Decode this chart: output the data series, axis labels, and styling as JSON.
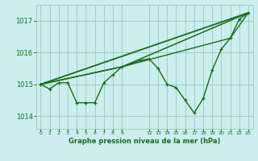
{
  "background_color": "#cceeee",
  "grid_color": "#99ccbb",
  "line_color": "#1a6b1a",
  "marker_color": "#1a6b1a",
  "title": "Graphe pression niveau de la mer (hPa)",
  "ylim": [
    1013.6,
    1017.5
  ],
  "yticks": [
    1014,
    1015,
    1016,
    1017
  ],
  "series": [
    {
      "x": [
        0,
        1,
        2,
        3,
        4,
        5,
        6,
        7,
        8,
        9,
        11,
        12,
        13,
        14,
        15,
        16,
        17,
        18,
        19,
        20,
        21,
        22,
        23
      ],
      "y": [
        1015.0,
        1014.85,
        1015.05,
        1015.05,
        1014.42,
        1014.42,
        1014.42,
        1015.05,
        1015.3,
        1015.55,
        1015.75,
        1015.8,
        1015.5,
        1015.0,
        1014.9,
        1014.5,
        1014.1,
        1014.55,
        1015.45,
        1016.1,
        1016.45,
        1017.05,
        1017.25
      ],
      "has_markers": true,
      "linewidth": 1.0,
      "linestyle": "-"
    },
    {
      "x": [
        0,
        23
      ],
      "y": [
        1015.0,
        1017.25
      ],
      "has_markers": false,
      "linewidth": 1.3,
      "linestyle": "-"
    },
    {
      "x": [
        0,
        9,
        23
      ],
      "y": [
        1015.0,
        1015.55,
        1017.25
      ],
      "has_markers": false,
      "linewidth": 1.1,
      "linestyle": "-"
    },
    {
      "x": [
        0,
        9,
        21,
        23
      ],
      "y": [
        1015.0,
        1015.55,
        1016.45,
        1017.25
      ],
      "has_markers": false,
      "linewidth": 1.0,
      "linestyle": "-"
    }
  ]
}
